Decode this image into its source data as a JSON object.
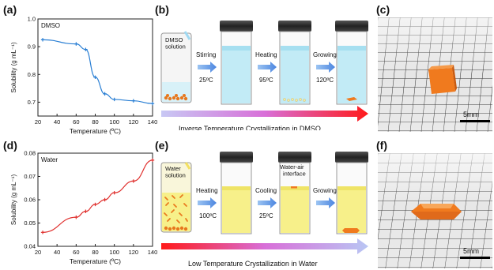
{
  "panel_labels": {
    "a": "(a)",
    "b": "(b)",
    "c": "(c)",
    "d": "(d)",
    "e": "(e)",
    "f": "(f)"
  },
  "chart_data": [
    {
      "type": "line",
      "legend_text": "DMSO",
      "xlabel": "Temperature (ºC)",
      "ylabel": "Solubility (g mL⁻¹)",
      "xlim": [
        20,
        140
      ],
      "ylim": [
        0.65,
        1.0
      ],
      "x_ticks": [
        20,
        40,
        60,
        80,
        100,
        120,
        140
      ],
      "y_ticks": [
        0.7,
        0.8,
        0.9,
        1.0
      ],
      "y_tick_labels": [
        "0.7",
        "0.8",
        "0.9",
        "1.0"
      ],
      "x": [
        25,
        60,
        70,
        80,
        90,
        100,
        120,
        140
      ],
      "y": [
        0.925,
        0.91,
        0.89,
        0.79,
        0.73,
        0.71,
        0.705,
        0.695
      ],
      "color": "#2a7fd4"
    },
    {
      "type": "line",
      "legend_text": "Water",
      "xlabel": "Temperature (ºC)",
      "ylabel": "Solubility (g mL⁻¹)",
      "xlim": [
        20,
        140
      ],
      "ylim": [
        0.04,
        0.08
      ],
      "x_ticks": [
        20,
        40,
        60,
        80,
        100,
        120,
        140
      ],
      "y_ticks": [
        0.04,
        0.05,
        0.06,
        0.07,
        0.08
      ],
      "y_tick_labels": [
        "0.04",
        "0.05",
        "0.06",
        "0.07",
        "0.08"
      ],
      "x": [
        25,
        60,
        70,
        80,
        90,
        100,
        120,
        140
      ],
      "y": [
        0.046,
        0.0525,
        0.055,
        0.058,
        0.06,
        0.063,
        0.068,
        0.077
      ],
      "color": "#e0312f"
    }
  ],
  "panel_b": {
    "vial1_label": "DMSO\nsolution",
    "steps": [
      {
        "label": "Stirring",
        "cond": "25ºC"
      },
      {
        "label": "Heating",
        "cond": "95ºC"
      },
      {
        "label": "Growing",
        "cond": "120ºC"
      }
    ],
    "caption": "Inverse Temperature Crystallization in DMSO"
  },
  "panel_e": {
    "vial1_label": "Water\nsolution",
    "steps": [
      {
        "label": "Heating",
        "cond": "100ºC"
      },
      {
        "label": "Cooling",
        "cond": "25ºC"
      },
      {
        "label": "Growing",
        "cond": ""
      }
    ],
    "interface_label": "Water-air\ninterface",
    "caption": "Low Temperature Crystallization in Water"
  },
  "scale_bars": {
    "c": "5mm",
    "f": "5mm"
  },
  "colors": {
    "crystal": "#f07a1e",
    "dmso_liquid": "#bfe9f5",
    "water_liquid": "#f7f08a"
  }
}
